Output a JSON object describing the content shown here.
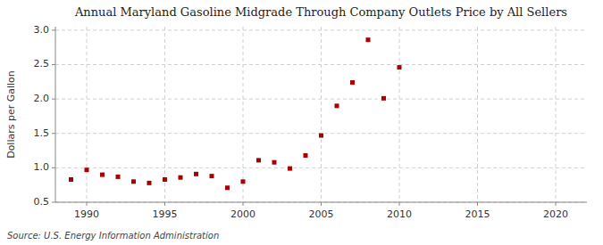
{
  "chart_data": {
    "type": "scatter",
    "title": "Annual Maryland Gasoline Midgrade Through Company Outlets Price by All Sellers",
    "ylabel": "Dollars per Gallon",
    "annotation": "Source: U.S. Energy Information Administration",
    "x": [
      1989,
      1990,
      1991,
      1992,
      1993,
      1994,
      1995,
      1996,
      1997,
      1998,
      1999,
      2000,
      2001,
      2002,
      2003,
      2004,
      2005,
      2006,
      2007,
      2008,
      2009,
      2010
    ],
    "values": [
      0.83,
      0.97,
      0.9,
      0.87,
      0.8,
      0.78,
      0.83,
      0.86,
      0.91,
      0.88,
      0.71,
      0.8,
      1.11,
      1.08,
      0.99,
      1.18,
      1.47,
      1.9,
      2.24,
      2.86,
      2.01,
      2.46
    ],
    "color": "#aa0000",
    "marker": "square",
    "xlim": [
      1988,
      2022
    ],
    "ylim": [
      0.5,
      3.05
    ],
    "xticks": [
      1990,
      1995,
      2000,
      2005,
      2010,
      2015,
      2020
    ],
    "yticks": [
      0.5,
      {
        "value": 1.0,
        "label": "1.0"
      },
      1.5,
      {
        "value": 2.0,
        "label": "2.0"
      },
      2.5,
      {
        "value": 3.0,
        "label": "3.0"
      }
    ],
    "grid": true
  }
}
